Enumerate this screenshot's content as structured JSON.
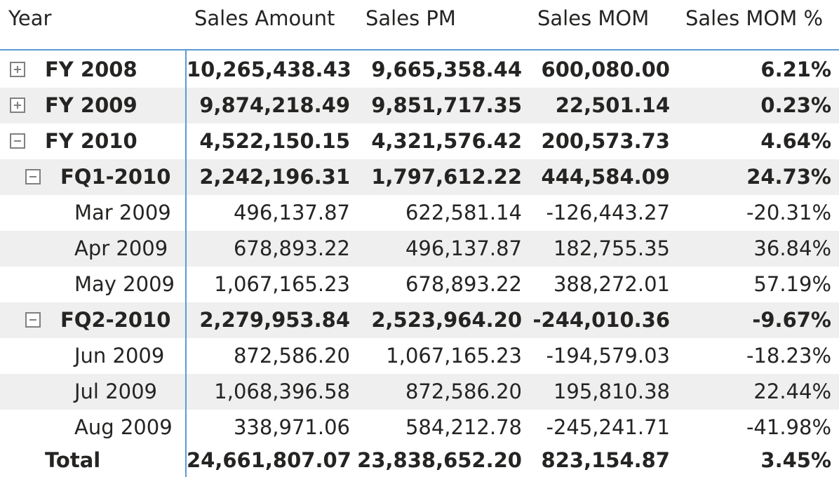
{
  "headers": {
    "year": "Year",
    "sales_amount": "Sales Amount",
    "sales_pm": "Sales PM",
    "sales_mom": "Sales MOM",
    "sales_mom_pct": "Sales MOM %"
  },
  "rows": [
    {
      "label": "FY 2008",
      "amount": "10,265,438.43",
      "pm": "9,665,358.44",
      "mom": "600,080.00",
      "pct": "6.21%"
    },
    {
      "label": "FY 2009",
      "amount": "9,874,218.49",
      "pm": "9,851,717.35",
      "mom": "22,501.14",
      "pct": "0.23%"
    },
    {
      "label": "FY 2010",
      "amount": "4,522,150.15",
      "pm": "4,321,576.42",
      "mom": "200,573.73",
      "pct": "4.64%"
    },
    {
      "label": "FQ1-2010",
      "amount": "2,242,196.31",
      "pm": "1,797,612.22",
      "mom": "444,584.09",
      "pct": "24.73%"
    },
    {
      "label": "Mar 2009",
      "amount": "496,137.87",
      "pm": "622,581.14",
      "mom": "-126,443.27",
      "pct": "-20.31%"
    },
    {
      "label": "Apr 2009",
      "amount": "678,893.22",
      "pm": "496,137.87",
      "mom": "182,755.35",
      "pct": "36.84%"
    },
    {
      "label": "May 2009",
      "amount": "1,067,165.23",
      "pm": "678,893.22",
      "mom": "388,272.01",
      "pct": "57.19%"
    },
    {
      "label": "FQ2-2010",
      "amount": "2,279,953.84",
      "pm": "2,523,964.20",
      "mom": "-244,010.36",
      "pct": "-9.67%"
    },
    {
      "label": "Jun 2009",
      "amount": "872,586.20",
      "pm": "1,067,165.23",
      "mom": "-194,579.03",
      "pct": "-18.23%"
    },
    {
      "label": "Jul 2009",
      "amount": "1,068,396.58",
      "pm": "872,586.20",
      "mom": "195,810.38",
      "pct": "22.44%"
    },
    {
      "label": "Aug 2009",
      "amount": "338,971.06",
      "pm": "584,212.78",
      "mom": "-245,241.71",
      "pct": "-41.98%"
    }
  ],
  "total": {
    "label": "Total",
    "amount": "24,661,807.07",
    "pm": "23,838,652.20",
    "mom": "823,154.87",
    "pct": "3.45%"
  },
  "colors": {
    "accent": "#5b9bd5",
    "stripe": "#efefef",
    "text": "#252423",
    "toggle": "#808080"
  }
}
